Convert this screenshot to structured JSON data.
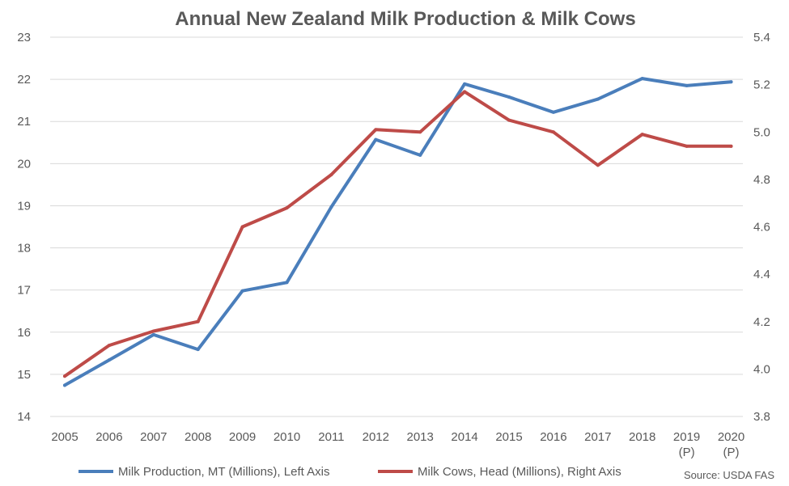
{
  "chart_data": {
    "type": "line",
    "title": "Annual New Zealand Milk Production & Milk Cows",
    "categories": [
      "2005",
      "2006",
      "2007",
      "2008",
      "2009",
      "2010",
      "2011",
      "2012",
      "2013",
      "2014",
      "2015",
      "2016",
      "2017",
      "2018",
      "2019\n(P)",
      "2020\n(P)"
    ],
    "y_left": {
      "min": 14,
      "max": 23,
      "ticks": [
        "14",
        "15",
        "16",
        "17",
        "18",
        "19",
        "20",
        "21",
        "22",
        "23"
      ]
    },
    "y_right": {
      "min": 3.8,
      "max": 5.4,
      "ticks": [
        "3.8",
        "4.0",
        "4.2",
        "4.4",
        "4.6",
        "4.8",
        "5.0",
        "5.2",
        "5.4"
      ]
    },
    "grid": true,
    "legend_position": "bottom",
    "series": [
      {
        "name": "Milk Production, MT (Millions), Left Axis",
        "axis": "left",
        "color": "#4a7ebb",
        "values": [
          14.74,
          15.34,
          15.94,
          15.59,
          16.98,
          17.18,
          18.97,
          20.57,
          20.2,
          21.89,
          21.58,
          21.22,
          21.53,
          22.02,
          21.85,
          21.94
        ]
      },
      {
        "name": "Milk Cows, Head (Millions), Right Axis",
        "axis": "right",
        "color": "#be4b48",
        "values": [
          3.97,
          4.1,
          4.16,
          4.2,
          4.6,
          4.68,
          4.82,
          5.01,
          5.0,
          5.17,
          5.05,
          5.0,
          4.86,
          4.99,
          4.94,
          4.94
        ]
      }
    ],
    "source": "Source: USDA FAS"
  }
}
